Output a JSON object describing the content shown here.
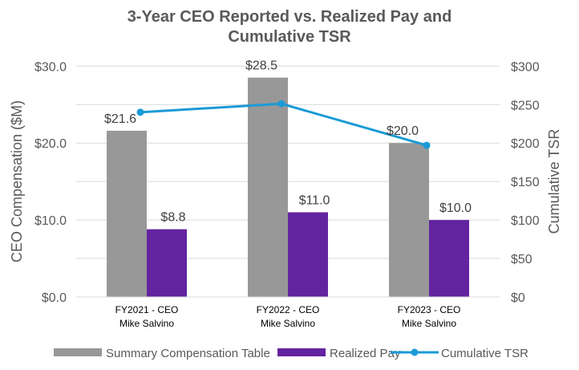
{
  "chart_data": {
    "type": "bar+line",
    "title": "3-Year CEO Reported vs. Realized Pay and Cumulative TSR",
    "title_lines": [
      "3-Year CEO Reported vs. Realized Pay and",
      "Cumulative TSR"
    ],
    "categories": [
      [
        "FY2021 - CEO",
        "Mike Salvino"
      ],
      [
        "FY2022 - CEO",
        "Mike Salvino"
      ],
      [
        "FY2023 - CEO",
        "Mike Salvino"
      ]
    ],
    "ylabel": "CEO Compensation ($M)",
    "y2label": "Cumulative TSR",
    "ylim": [
      0,
      30
    ],
    "y2lim": [
      0,
      300
    ],
    "yticks": [
      "$0.0",
      "$10.0",
      "$20.0",
      "$30.0"
    ],
    "y2ticks": [
      "$0",
      "$50",
      "$100",
      "$150",
      "$200",
      "$250",
      "$300"
    ],
    "grid": true,
    "legend_position": "bottom",
    "series": [
      {
        "name": "Summary Compensation Table",
        "type": "bar",
        "axis": "left",
        "color": "#989898",
        "values": [
          21.6,
          28.5,
          20.0
        ],
        "labels": [
          "$21.6",
          "$28.5",
          "$20.0"
        ]
      },
      {
        "name": "Realized Pay",
        "type": "bar",
        "axis": "left",
        "color": "#6324a0",
        "values": [
          8.8,
          11.0,
          10.0
        ],
        "labels": [
          "$8.8",
          "$11.0",
          "$10.0"
        ]
      },
      {
        "name": "Cumulative TSR",
        "type": "line",
        "axis": "right",
        "color": "#1a9ad6",
        "values": [
          240,
          251,
          197
        ]
      }
    ]
  }
}
